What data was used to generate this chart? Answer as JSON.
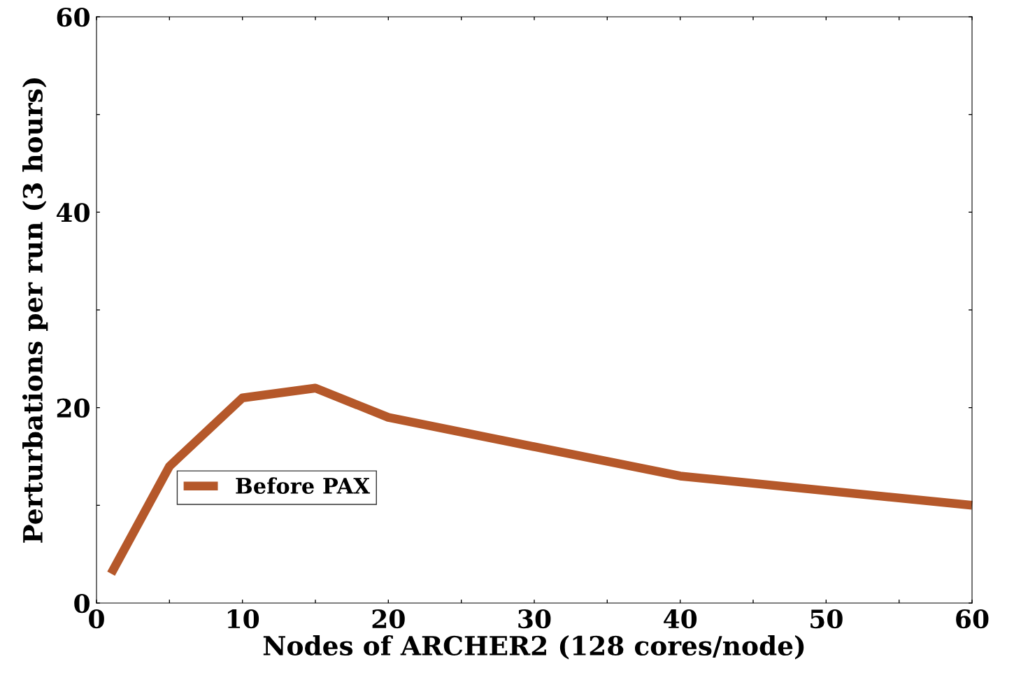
{
  "chart_data": {
    "type": "line",
    "xlabel": "Nodes of ARCHER2 (128 cores/node)",
    "ylabel": "Perturbations per run (3 hours)",
    "x": [
      1,
      5,
      10,
      15,
      20,
      40,
      60
    ],
    "series": [
      {
        "name": "Before PAX",
        "color": "#b5582a",
        "values": [
          3,
          14,
          21,
          22,
          19,
          13,
          10
        ]
      }
    ],
    "xlim": [
      0,
      60
    ],
    "ylim": [
      0,
      60
    ],
    "xticks": [
      0,
      {
        "value": 5,
        "label": null
      },
      10,
      {
        "value": 15,
        "label": null
      },
      20,
      {
        "value": 25,
        "label": null
      },
      30,
      {
        "value": 35,
        "label": null
      },
      40,
      {
        "value": 45,
        "label": null
      },
      50,
      {
        "value": 55,
        "label": null
      },
      60
    ],
    "yticks": [
      0,
      {
        "value": 10,
        "label": null
      },
      20,
      {
        "value": 30,
        "label": null
      },
      40,
      {
        "value": 50,
        "label": null
      },
      60
    ],
    "grid": false,
    "legend": "lower left",
    "marker": "none",
    "line_style": "solid"
  }
}
